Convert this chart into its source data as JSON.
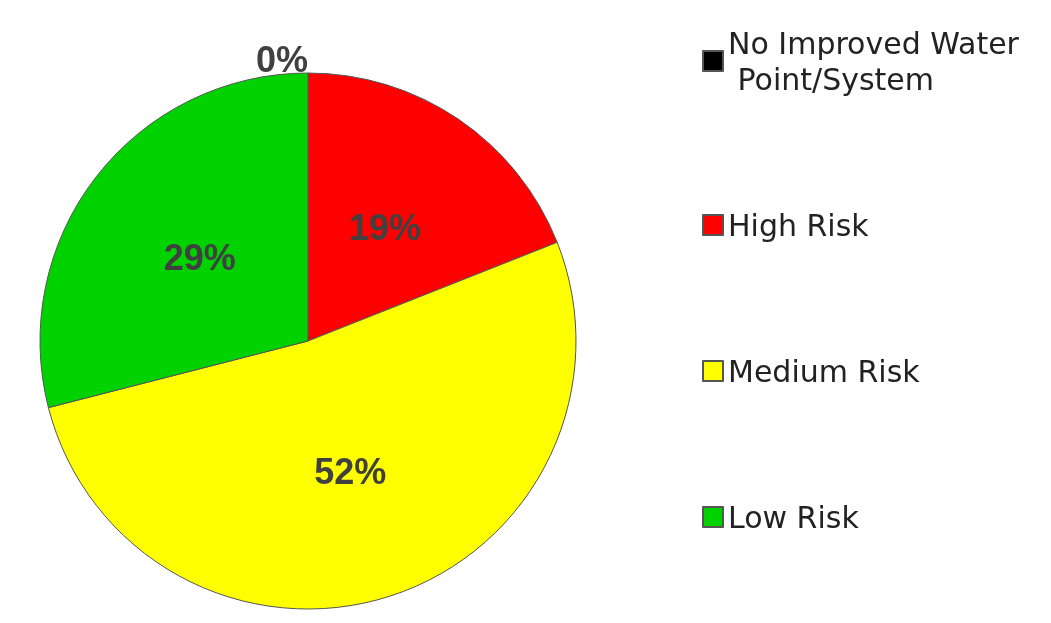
{
  "chart_data": {
    "type": "pie",
    "categories": [
      "No Improved Water Point/System",
      "High Risk",
      "Medium Risk",
      "Low Risk"
    ],
    "values": [
      0,
      19,
      52,
      29
    ],
    "colors": [
      "#000000",
      "#ff0000",
      "#ffff00",
      "#00d200"
    ],
    "value_labels": [
      "0%",
      "19%",
      "52%",
      "29%"
    ],
    "legend": "right"
  }
}
